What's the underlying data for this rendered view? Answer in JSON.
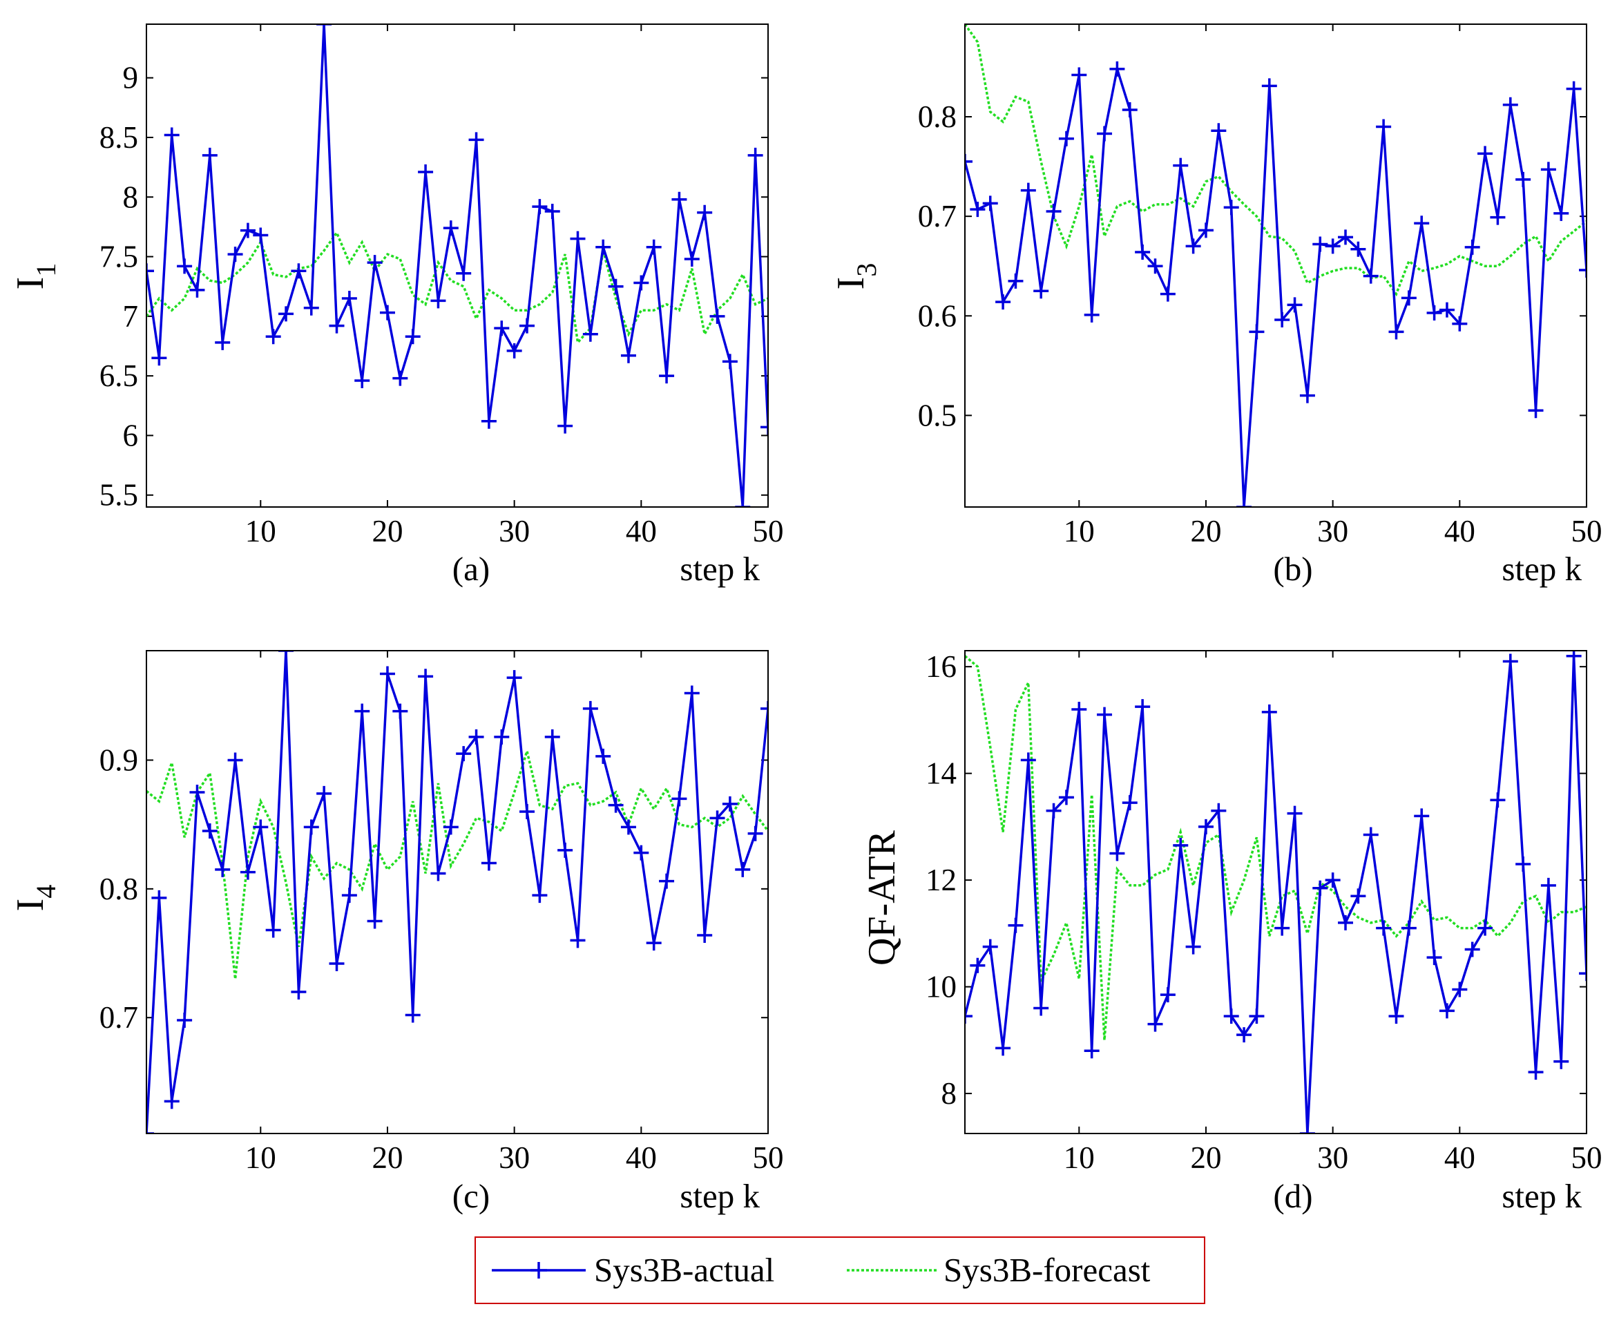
{
  "colors": {
    "actual": "#0000dd",
    "forecast": "#22dd22",
    "legend_border": "#cc0000"
  },
  "legend": {
    "actual_label": "Sys3B-actual",
    "forecast_label": "Sys3B-forecast"
  },
  "chart_data": [
    {
      "type": "line",
      "id": "a",
      "caption": "(a)",
      "xlabel": "step k",
      "ylabel": "I",
      "ylabel_sub": "1",
      "xlim": [
        1,
        50
      ],
      "ylim": [
        5.4,
        9.45
      ],
      "xticks": [
        10,
        20,
        30,
        40,
        50
      ],
      "yticks": [
        5.5,
        6,
        6.5,
        7,
        7.5,
        8,
        8.5,
        9
      ],
      "ytick_labels": [
        "5.5",
        "6",
        "6.5",
        "7",
        "7.5",
        "8",
        "8.5",
        "9"
      ],
      "series": [
        {
          "name": "Sys3B-actual",
          "values": [
            7.38,
            6.65,
            8.52,
            7.42,
            7.22,
            8.35,
            6.78,
            7.52,
            7.72,
            7.68,
            6.83,
            7.02,
            7.38,
            7.07,
            9.45,
            6.92,
            7.15,
            6.46,
            7.45,
            7.03,
            6.48,
            6.83,
            8.21,
            7.13,
            7.74,
            7.36,
            8.48,
            6.12,
            6.9,
            6.71,
            6.92,
            7.92,
            7.88,
            6.08,
            7.65,
            6.85,
            7.58,
            7.25,
            6.67,
            7.28,
            7.58,
            6.5,
            7.98,
            7.48,
            7.87,
            7.0,
            6.62,
            5.4,
            8.35,
            6.07
          ]
        },
        {
          "name": "Sys3B-forecast",
          "values": [
            7.0,
            7.15,
            7.05,
            7.15,
            7.4,
            7.3,
            7.28,
            7.35,
            7.45,
            7.62,
            7.35,
            7.33,
            7.4,
            7.42,
            7.55,
            7.7,
            7.45,
            7.62,
            7.38,
            7.52,
            7.48,
            7.18,
            7.1,
            7.45,
            7.3,
            7.25,
            6.98,
            7.22,
            7.15,
            7.05,
            7.05,
            7.1,
            7.2,
            7.52,
            6.78,
            6.9,
            7.55,
            7.15,
            6.85,
            7.05,
            7.05,
            7.1,
            7.05,
            7.4,
            6.85,
            7.05,
            7.15,
            7.35,
            7.1,
            7.15
          ]
        }
      ]
    },
    {
      "type": "line",
      "id": "b",
      "caption": "(b)",
      "xlabel": "step k",
      "ylabel": "I",
      "ylabel_sub": "3",
      "xlim": [
        1,
        50
      ],
      "ylim": [
        0.408,
        0.893
      ],
      "xticks": [
        10,
        20,
        30,
        40,
        50
      ],
      "yticks": [
        0.5,
        0.6,
        0.7,
        0.8
      ],
      "ytick_labels": [
        "0.5",
        "0.6",
        "0.7",
        "0.8"
      ],
      "series": [
        {
          "name": "Sys3B-actual",
          "values": [
            0.755,
            0.707,
            0.713,
            0.614,
            0.635,
            0.726,
            0.625,
            0.705,
            0.778,
            0.842,
            0.601,
            0.783,
            0.848,
            0.807,
            0.664,
            0.65,
            0.622,
            0.751,
            0.67,
            0.686,
            0.786,
            0.709,
            0.408,
            0.584,
            0.831,
            0.596,
            0.611,
            0.52,
            0.672,
            0.67,
            0.679,
            0.667,
            0.64,
            0.79,
            0.584,
            0.618,
            0.693,
            0.603,
            0.606,
            0.592,
            0.669,
            0.763,
            0.699,
            0.812,
            0.737,
            0.505,
            0.747,
            0.703,
            0.828,
            0.646
          ]
        },
        {
          "name": "Sys3B-forecast",
          "values": [
            0.893,
            0.875,
            0.805,
            0.795,
            0.82,
            0.815,
            0.755,
            0.7,
            0.67,
            0.71,
            0.762,
            0.68,
            0.71,
            0.715,
            0.705,
            0.712,
            0.712,
            0.718,
            0.71,
            0.735,
            0.74,
            0.725,
            0.712,
            0.7,
            0.68,
            0.678,
            0.665,
            0.633,
            0.64,
            0.645,
            0.648,
            0.648,
            0.638,
            0.64,
            0.622,
            0.655,
            0.645,
            0.648,
            0.652,
            0.66,
            0.655,
            0.65,
            0.65,
            0.66,
            0.672,
            0.68,
            0.655,
            0.675,
            0.685,
            0.695
          ]
        }
      ]
    },
    {
      "type": "line",
      "id": "c",
      "caption": "(c)",
      "xlabel": "step k",
      "ylabel": "I",
      "ylabel_sub": "4",
      "xlim": [
        1,
        50
      ],
      "ylim": [
        0.61,
        0.985
      ],
      "xticks": [
        10,
        20,
        30,
        40,
        50
      ],
      "yticks": [
        0.7,
        0.8,
        0.9
      ],
      "ytick_labels": [
        "0.7",
        "0.8",
        "0.9"
      ],
      "series": [
        {
          "name": "Sys3B-actual",
          "values": [
            0.61,
            0.793,
            0.635,
            0.698,
            0.875,
            0.845,
            0.815,
            0.9,
            0.813,
            0.848,
            0.768,
            0.985,
            0.72,
            0.848,
            0.874,
            0.742,
            0.795,
            0.938,
            0.775,
            0.967,
            0.938,
            0.702,
            0.965,
            0.812,
            0.848,
            0.905,
            0.918,
            0.82,
            0.918,
            0.964,
            0.86,
            0.795,
            0.918,
            0.83,
            0.76,
            0.94,
            0.903,
            0.865,
            0.848,
            0.828,
            0.758,
            0.806,
            0.87,
            0.952,
            0.764,
            0.855,
            0.866,
            0.815,
            0.843,
            0.94
          ]
        },
        {
          "name": "Sys3B-forecast",
          "values": [
            0.876,
            0.868,
            0.898,
            0.84,
            0.875,
            0.89,
            0.82,
            0.73,
            0.825,
            0.868,
            0.848,
            0.805,
            0.755,
            0.825,
            0.808,
            0.82,
            0.815,
            0.8,
            0.835,
            0.815,
            0.825,
            0.868,
            0.812,
            0.882,
            0.818,
            0.835,
            0.855,
            0.852,
            0.845,
            0.875,
            0.907,
            0.865,
            0.862,
            0.88,
            0.882,
            0.865,
            0.868,
            0.875,
            0.85,
            0.878,
            0.862,
            0.878,
            0.85,
            0.848,
            0.855,
            0.848,
            0.855,
            0.872,
            0.858,
            0.845
          ]
        }
      ]
    },
    {
      "type": "line",
      "id": "d",
      "caption": "(d)",
      "xlabel": "step k",
      "ylabel": "QF-ATR",
      "ylabel_sub": "",
      "xlim": [
        1,
        50
      ],
      "ylim": [
        7.25,
        16.3
      ],
      "xticks": [
        10,
        20,
        30,
        40,
        50
      ],
      "yticks": [
        8,
        10,
        12,
        14,
        16
      ],
      "ytick_labels": [
        "8",
        "10",
        "12",
        "14",
        "16"
      ],
      "series": [
        {
          "name": "Sys3B-actual",
          "values": [
            9.45,
            10.4,
            10.75,
            8.85,
            11.15,
            14.25,
            9.6,
            13.3,
            13.55,
            15.2,
            8.8,
            15.1,
            12.5,
            13.45,
            15.25,
            9.3,
            9.85,
            12.65,
            10.75,
            13.0,
            13.3,
            9.45,
            9.1,
            9.45,
            15.15,
            11.1,
            13.25,
            7.25,
            11.85,
            12.0,
            11.2,
            11.7,
            12.85,
            11.1,
            9.45,
            11.1,
            13.2,
            10.55,
            9.55,
            9.95,
            10.7,
            11.1,
            13.5,
            16.1,
            12.3,
            8.4,
            11.9,
            8.6,
            16.2,
            10.25
          ]
        },
        {
          "name": "Sys3B-forecast",
          "values": [
            16.2,
            16.0,
            14.5,
            12.9,
            15.2,
            15.7,
            10.1,
            10.6,
            11.2,
            10.15,
            13.6,
            9.0,
            12.2,
            11.9,
            11.9,
            12.1,
            12.2,
            12.9,
            11.9,
            12.7,
            12.85,
            11.4,
            12.0,
            12.8,
            10.95,
            11.7,
            11.8,
            11.0,
            11.95,
            11.8,
            11.5,
            11.3,
            11.2,
            11.25,
            10.95,
            11.2,
            11.6,
            11.25,
            11.3,
            11.1,
            11.1,
            11.25,
            10.95,
            11.2,
            11.6,
            11.7,
            11.2,
            11.4,
            11.4,
            11.5
          ]
        }
      ]
    }
  ]
}
